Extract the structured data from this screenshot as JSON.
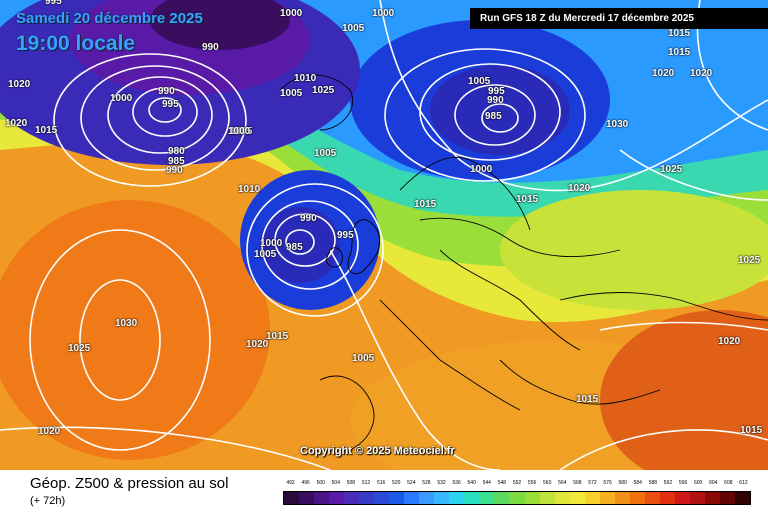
{
  "header": {
    "date_line1": "Samedi 20 décembre 2025",
    "date_line2": "19:00 locale",
    "run_info": "Run GFS 18 Z du Mercredi 17 décembre 2025"
  },
  "map": {
    "copyright": "Copyright © 2025 Meteociel.fr",
    "pressure_labels": [
      "995",
      "1000",
      "1005",
      "1000",
      "990",
      "1020",
      "1020",
      "1015",
      "1000",
      "990",
      "995",
      "980",
      "985",
      "990",
      "1010",
      "1025",
      "1005",
      "1005",
      "1010",
      "1005",
      "990",
      "995",
      "1005",
      "1000",
      "985",
      "1015",
      "1020",
      "1005",
      "1000",
      "985",
      "995",
      "990",
      "1005",
      "1000",
      "1015",
      "1015",
      "1015",
      "1020",
      "1020",
      "1015",
      "1030",
      "1025",
      "1025",
      "1020",
      "1015",
      "1015",
      "1030",
      "1025",
      "1020",
      "1020"
    ],
    "color_regions": {
      "deep_low_purple": "#3a0d6e",
      "low_blue": "#1a3cd8",
      "mid_blue": "#2b7fff",
      "cyan": "#25d4f0",
      "green": "#6ad84a",
      "yellow": "#e8e83a",
      "orange": "#f0901e",
      "land_outline": "#000000",
      "isobar": "#ffffff"
    }
  },
  "footer": {
    "title": "Géop. Z500 & pression au sol",
    "subtitle": "(+ 72h)"
  },
  "scale": {
    "labels": [
      "492",
      "496",
      "500",
      "504",
      "508",
      "512",
      "516",
      "520",
      "524",
      "528",
      "532",
      "536",
      "540",
      "544",
      "548",
      "552",
      "556",
      "560",
      "564",
      "568",
      "572",
      "576",
      "580",
      "584",
      "588",
      "592",
      "596",
      "600",
      "604",
      "608",
      "612"
    ],
    "colors": [
      "#2a0a3a",
      "#3a0d5e",
      "#4a1488",
      "#5a1aa8",
      "#4a2ab8",
      "#3a3ac8",
      "#2a4ad8",
      "#1a5ae8",
      "#2a7aff",
      "#3a9aff",
      "#3ab8ff",
      "#2ad4f0",
      "#2ae0c0",
      "#3ae090",
      "#5ad860",
      "#7ada40",
      "#9ade3a",
      "#c0e23a",
      "#e0e63a",
      "#f0e83a",
      "#f8d02a",
      "#f8b020",
      "#f09018",
      "#f07010",
      "#e85010",
      "#e03010",
      "#d01818",
      "#b01010",
      "#8a0808",
      "#600404",
      "#300202"
    ]
  }
}
